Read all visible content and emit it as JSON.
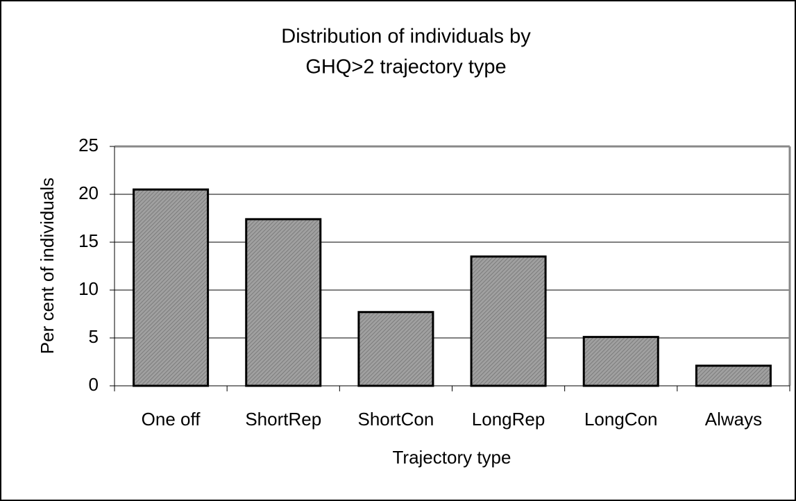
{
  "chart_data": {
    "type": "bar",
    "title": [
      "Distribution of individuals by",
      "GHQ>2 trajectory type"
    ],
    "x_label": "Trajectory type",
    "y_label": "Per cent of individuals",
    "categories": [
      "One off",
      "ShortRep",
      "ShortCon",
      "LongRep",
      "LongCon",
      "Always"
    ],
    "values": [
      20.5,
      17.4,
      7.7,
      13.5,
      5.1,
      2.1
    ],
    "color": "#a0a0a0",
    "ylim": [
      0,
      25
    ],
    "yticks": [
      0,
      5,
      10,
      15,
      20,
      25
    ],
    "grid": true
  }
}
